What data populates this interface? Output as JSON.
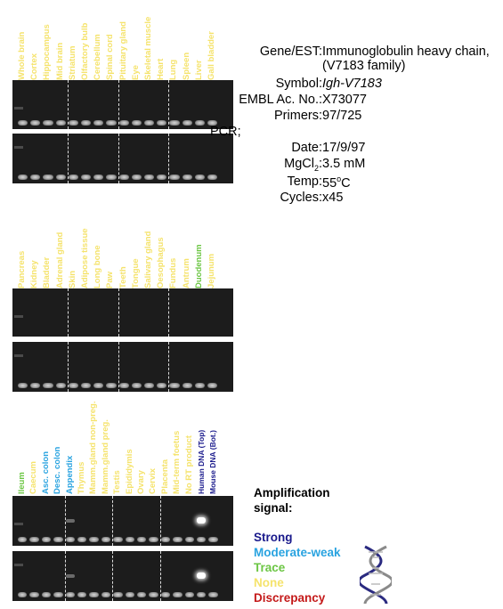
{
  "gene_info": {
    "gene_est_label": "Gene/EST:",
    "gene_est_line1": "Immunoglobulin heavy chain,",
    "gene_est_line2": "(V7183 family)",
    "symbol_label": "Symbol:",
    "symbol_value": "Igh-V7183",
    "embl_label": "EMBL Ac. No.:",
    "embl_value": "X73077",
    "primers_label": "Primers:",
    "primers_value": "97/725",
    "pcr_label": "PCR;",
    "date_label": "Date:",
    "date_value": "17/9/97",
    "mgcl2_label_main": "MgCl",
    "mgcl2_label_sub": "2",
    "mgcl2_label_end": ":",
    "mgcl2_value": "3.5 mM",
    "temp_label": "Temp:",
    "temp_value_main": "55",
    "temp_value_sup": "o",
    "temp_value_end": "C",
    "cycles_label": "Cycles:",
    "cycles_value": "x45"
  },
  "colors": {
    "strong": "#1a1a8c",
    "moderate_weak": "#29a3e0",
    "trace": "#6cc644",
    "none": "#f5e36c",
    "discrepancy": "#c41a1a"
  },
  "panel1": {
    "lanes": [
      {
        "label": "Whole brain",
        "signal": "none"
      },
      {
        "label": "Cortex",
        "signal": "none"
      },
      {
        "label": "Hippocampus",
        "signal": "none"
      },
      {
        "label": "Mid brain",
        "signal": "none"
      },
      {
        "label": "Striatum",
        "signal": "none"
      },
      {
        "label": "Olfactory bulb",
        "signal": "none"
      },
      {
        "label": "Cerebellum",
        "signal": "none"
      },
      {
        "label": "Spinal cord",
        "signal": "none"
      },
      {
        "label": "Pituitary gland",
        "signal": "none"
      },
      {
        "label": "Eye",
        "signal": "none"
      },
      {
        "label": "Skeletal muscle",
        "signal": "none"
      },
      {
        "label": "Heart",
        "signal": "none"
      },
      {
        "label": "Lung",
        "signal": "none"
      },
      {
        "label": "Spleen",
        "signal": "none"
      },
      {
        "label": "Liver",
        "signal": "none"
      },
      {
        "label": "Gall bladder",
        "signal": "none"
      }
    ]
  },
  "panel2": {
    "lanes": [
      {
        "label": "Pancreas",
        "signal": "none"
      },
      {
        "label": "Kidney",
        "signal": "none"
      },
      {
        "label": "Bladder",
        "signal": "none"
      },
      {
        "label": "Adrenal gland",
        "signal": "none"
      },
      {
        "label": "Skin",
        "signal": "none"
      },
      {
        "label": "Adipose tissue",
        "signal": "none"
      },
      {
        "label": "Long bone",
        "signal": "none"
      },
      {
        "label": "Paw",
        "signal": "none"
      },
      {
        "label": "Teeth",
        "signal": "none"
      },
      {
        "label": "Tongue",
        "signal": "none"
      },
      {
        "label": "Salivary gland",
        "signal": "none"
      },
      {
        "label": "Oesophagus",
        "signal": "none"
      },
      {
        "label": "Fundus",
        "signal": "none"
      },
      {
        "label": "Antrum",
        "signal": "none"
      },
      {
        "label": "Duodenum",
        "signal": "trace"
      },
      {
        "label": "Jejunum",
        "signal": "none"
      }
    ]
  },
  "panel3": {
    "lanes": [
      {
        "label": "Ileum",
        "signal": "trace"
      },
      {
        "label": "Caecum",
        "signal": "none"
      },
      {
        "label": "Asc. colon",
        "signal": "moderate_weak"
      },
      {
        "label": "Desc. colon",
        "signal": "moderate_weak"
      },
      {
        "label": "Appendix",
        "signal": "moderate_weak"
      },
      {
        "label": "Thymus",
        "signal": "none"
      },
      {
        "label": "Mamm.gland non-preg.",
        "signal": "none"
      },
      {
        "label": "Mamm.gland preg.",
        "signal": "none"
      },
      {
        "label": "Testis",
        "signal": "none"
      },
      {
        "label": "Epididymis",
        "signal": "none"
      },
      {
        "label": "Ovary",
        "signal": "none"
      },
      {
        "label": "Cervix",
        "signal": "none"
      },
      {
        "label": "Placenta",
        "signal": "none"
      },
      {
        "label": "Mid-term foetus",
        "signal": "none"
      },
      {
        "label": "No RT product",
        "signal": "none"
      },
      {
        "label": "Human DNA (Top)",
        "signal": "strong"
      },
      {
        "label": "Mouse DNA (Bot.)",
        "signal": "strong"
      }
    ]
  },
  "legend": {
    "title_line1": "Amplification",
    "title_line2": "signal:",
    "strong": "Strong",
    "moderate_weak": "Moderate-weak",
    "trace": "Trace",
    "none": "None",
    "discrepancy": "Discrepancy"
  },
  "icons": {
    "dna": "dna-helix-icon"
  }
}
